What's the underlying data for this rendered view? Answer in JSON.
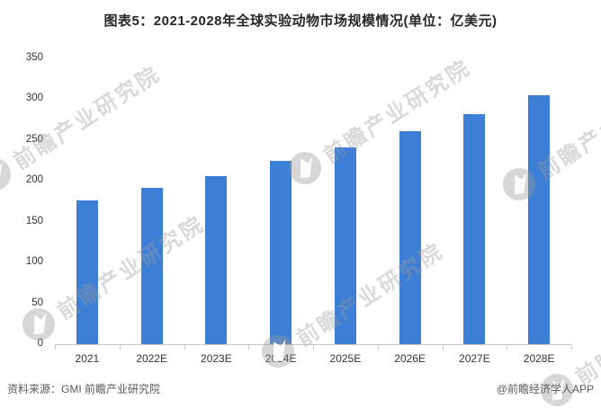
{
  "title": "图表5：2021-2028年全球实验动物市场规模情况(单位：亿美元)",
  "chart_data": {
    "type": "bar",
    "title": "图表5：2021-2028年全球实验动物市场规模情况(单位：亿美元)",
    "categories": [
      "2021",
      "2022E",
      "2023E",
      "2024E",
      "2025E",
      "2026E",
      "2027E",
      "2028E"
    ],
    "values": [
      176,
      191,
      206,
      224,
      241,
      261,
      282,
      305
    ],
    "xlabel": "",
    "ylabel": "",
    "unit": "亿美元",
    "ylim": [
      0,
      350
    ],
    "yticks": [
      0,
      50,
      100,
      150,
      200,
      250,
      300,
      350
    ],
    "grid": false,
    "legend": false,
    "bar_color": "#3d7ed6"
  },
  "watermark": {
    "text": "前瞻产业研究院",
    "logo_icon": "qianzhan-bird-logo-icon",
    "color": "#9b9b9b"
  },
  "footer": {
    "source": "资料来源：GMI 前瞻产业研究院",
    "credit": "@前瞻经济学人APP"
  },
  "colors": {
    "bar": "#3d7ed6",
    "axis": "#c9c9c9",
    "tick_text": "#333333",
    "title_text": "#262626",
    "footer_text": "#595959",
    "background": "#ffffff"
  }
}
